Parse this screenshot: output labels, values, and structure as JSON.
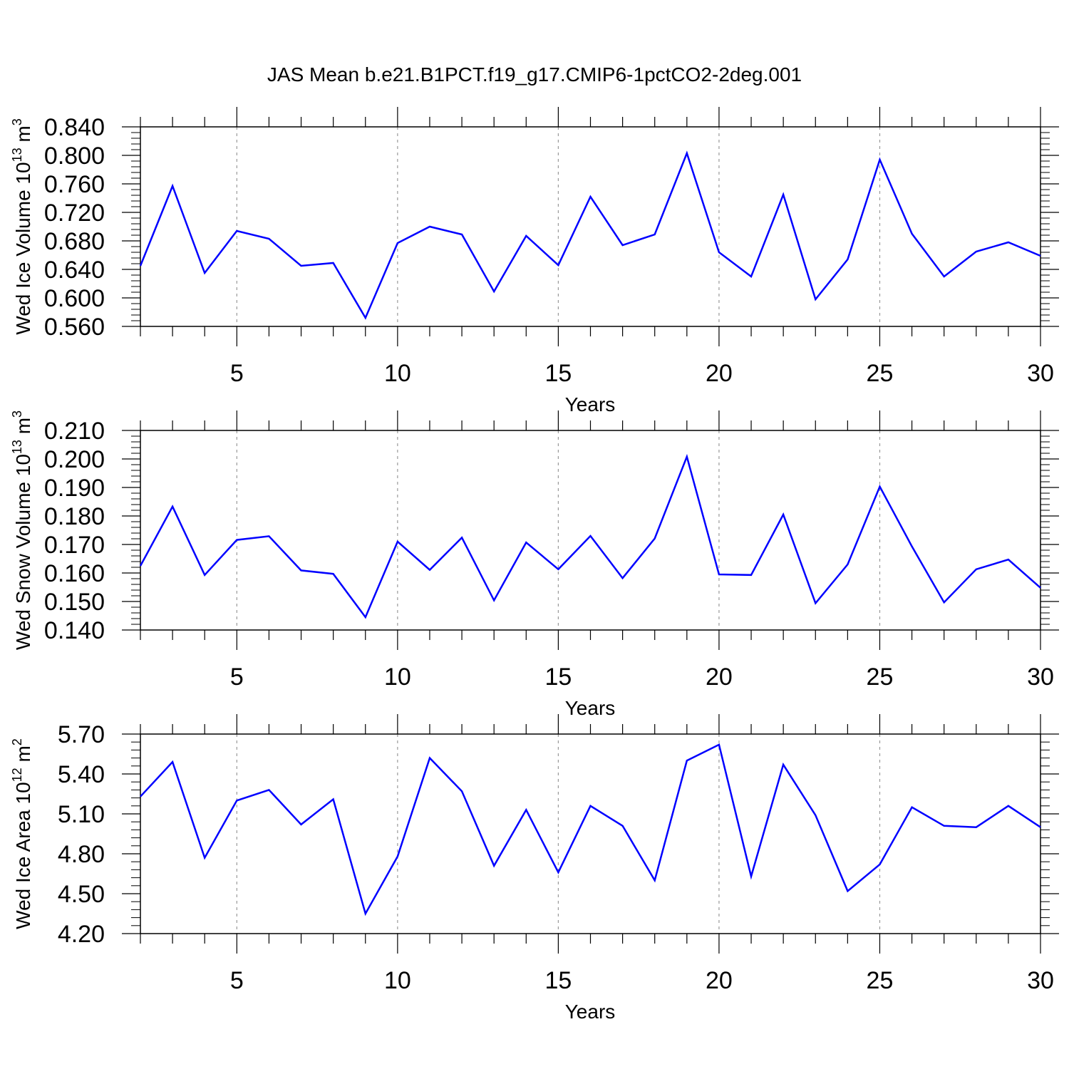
{
  "title": "JAS Mean b.e21.B1PCT.f19_g17.CMIP6-1pctCO2-2deg.001",
  "chart_data": [
    {
      "type": "line",
      "xlabel": "Years",
      "ylabel": {
        "text": "Wed Ice Volume 10",
        "exponent": "13",
        "unit": " m",
        "unit_exponent": "3"
      },
      "xlim": [
        2,
        30
      ],
      "ylim": [
        0.56,
        0.84
      ],
      "xticks": [
        5,
        10,
        15,
        20,
        25,
        30
      ],
      "yticks": [
        "0.560",
        "0.600",
        "0.640",
        "0.680",
        "0.720",
        "0.760",
        "0.800",
        "0.840"
      ],
      "grid_x": [
        5,
        10,
        15,
        20,
        25
      ],
      "color": "#0000ff",
      "series": [
        {
          "x": [
            2,
            3,
            4,
            5,
            6,
            7,
            8,
            9,
            10,
            11,
            12,
            13,
            14,
            15,
            16,
            17,
            18,
            19,
            20,
            21,
            22,
            23,
            24,
            25,
            26,
            27,
            28,
            29,
            30
          ],
          "values": [
            0.645,
            0.757,
            0.635,
            0.694,
            0.683,
            0.645,
            0.649,
            0.572,
            0.677,
            0.7,
            0.689,
            0.609,
            0.687,
            0.646,
            0.742,
            0.674,
            0.689,
            0.803,
            0.664,
            0.63,
            0.745,
            0.598,
            0.654,
            0.794,
            0.69,
            0.63,
            0.665,
            0.678,
            0.659
          ]
        }
      ]
    },
    {
      "type": "line",
      "xlabel": "Years",
      "ylabel": {
        "text": "Wed Snow Volume 10",
        "exponent": "13",
        "unit": " m",
        "unit_exponent": "3"
      },
      "xlim": [
        2,
        30
      ],
      "ylim": [
        0.14,
        0.21
      ],
      "xticks": [
        5,
        10,
        15,
        20,
        25,
        30
      ],
      "yticks": [
        "0.140",
        "0.150",
        "0.160",
        "0.170",
        "0.180",
        "0.190",
        "0.200",
        "0.210"
      ],
      "grid_x": [
        5,
        10,
        15,
        20,
        25
      ],
      "color": "#0000ff",
      "series": [
        {
          "x": [
            2,
            3,
            4,
            5,
            6,
            7,
            8,
            9,
            10,
            11,
            12,
            13,
            14,
            15,
            16,
            17,
            18,
            19,
            20,
            21,
            22,
            23,
            24,
            25,
            26,
            27,
            28,
            29,
            30
          ],
          "values": [
            0.1625,
            0.1833,
            0.1593,
            0.1716,
            0.1729,
            0.1609,
            0.1597,
            0.1445,
            0.171,
            0.1611,
            0.1724,
            0.1504,
            0.1707,
            0.1613,
            0.173,
            0.1582,
            0.1721,
            0.2008,
            0.1595,
            0.1593,
            0.1805,
            0.1494,
            0.163,
            0.1903,
            0.1693,
            0.1497,
            0.1613,
            0.1647,
            0.1548
          ]
        }
      ]
    },
    {
      "type": "line",
      "xlabel": "Years",
      "ylabel": {
        "text": "Wed Ice Area 10",
        "exponent": "12",
        "unit": " m",
        "unit_exponent": "2"
      },
      "xlim": [
        2,
        30
      ],
      "ylim": [
        4.2,
        5.7
      ],
      "xticks": [
        5,
        10,
        15,
        20,
        25,
        30
      ],
      "yticks": [
        "4.20",
        "4.50",
        "4.80",
        "5.10",
        "5.40",
        "5.70"
      ],
      "grid_x": [
        5,
        10,
        15,
        20,
        25
      ],
      "color": "#0000ff",
      "series": [
        {
          "x": [
            2,
            3,
            4,
            5,
            6,
            7,
            8,
            9,
            10,
            11,
            12,
            13,
            14,
            15,
            16,
            17,
            18,
            19,
            20,
            21,
            22,
            23,
            24,
            25,
            26,
            27,
            28,
            29,
            30
          ],
          "values": [
            5.23,
            5.49,
            4.77,
            5.2,
            5.28,
            5.02,
            5.21,
            4.35,
            4.78,
            5.52,
            5.27,
            4.71,
            5.13,
            4.66,
            5.16,
            5.01,
            4.6,
            5.5,
            5.62,
            4.63,
            5.47,
            5.09,
            4.52,
            4.72,
            5.15,
            5.01,
            5.0,
            5.16,
            5.0
          ]
        }
      ]
    }
  ]
}
